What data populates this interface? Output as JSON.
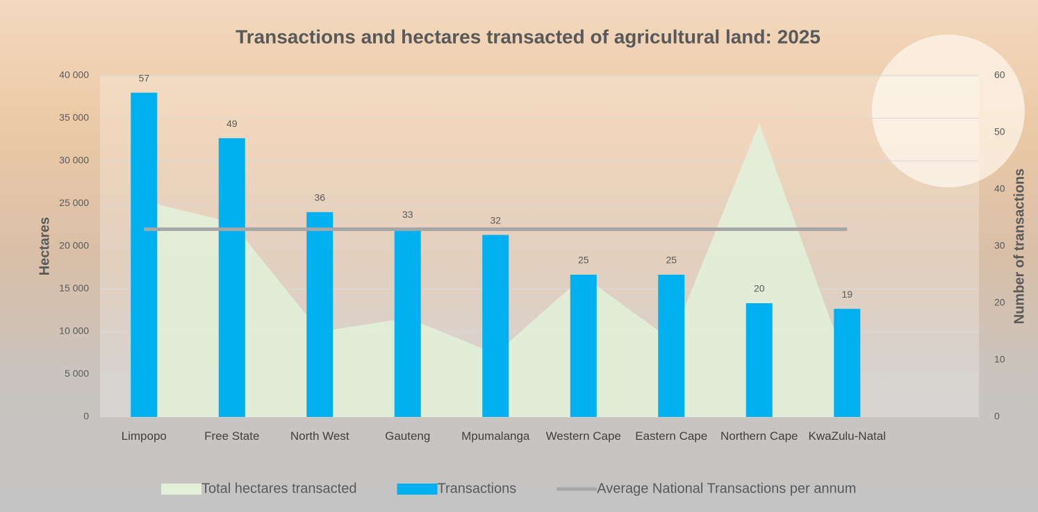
{
  "chart_data": {
    "type": "combo",
    "title": "Transactions and hectares transacted of agricultural land: 2025",
    "y_label": "Hectares",
    "y2_label": "Number of transactions",
    "categories": [
      "Limpopo",
      "Free State",
      "North West",
      "Gauteng",
      "Mpumalanga",
      "Western Cape",
      "Eastern Cape",
      "Northern Cape",
      "KwaZulu-Natal",
      null
    ],
    "series": [
      {
        "name": "Total hectares transacted",
        "type": "area",
        "color": "#e2efd9",
        "axis": "y",
        "values": [
          25300,
          22800,
          10000,
          11600,
          7400,
          16500,
          9000,
          34400,
          6000,
          null
        ]
      },
      {
        "name": "Transactions",
        "type": "bar",
        "color": "#00b0f0",
        "axis": "y2",
        "values": [
          57,
          49,
          36,
          33,
          32,
          25,
          25,
          20,
          19,
          null
        ]
      },
      {
        "name": "Average National Transactions per annum",
        "type": "line",
        "color": "#a6a6a6",
        "axis": "y2",
        "values": [
          33,
          33,
          33,
          33,
          33,
          33,
          33,
          33,
          33,
          null
        ]
      }
    ],
    "ylim": [
      0,
      40000
    ],
    "yticks": [
      0,
      {
        "value": 5000,
        "label": "5 000"
      },
      {
        "value": 10000,
        "label": "10 000"
      },
      {
        "value": 15000,
        "label": "15 000"
      },
      {
        "value": 20000,
        "label": "20 000"
      },
      {
        "value": 25000,
        "label": "25 000"
      },
      {
        "value": 30000,
        "label": "30 000"
      },
      {
        "value": 35000,
        "label": "35 000"
      },
      {
        "value": 40000,
        "label": "40 000"
      }
    ],
    "y2lim": [
      0,
      60
    ],
    "y2ticks": [
      0,
      10,
      20,
      30,
      40,
      50,
      60
    ],
    "grid": true,
    "legend": "bottom"
  }
}
